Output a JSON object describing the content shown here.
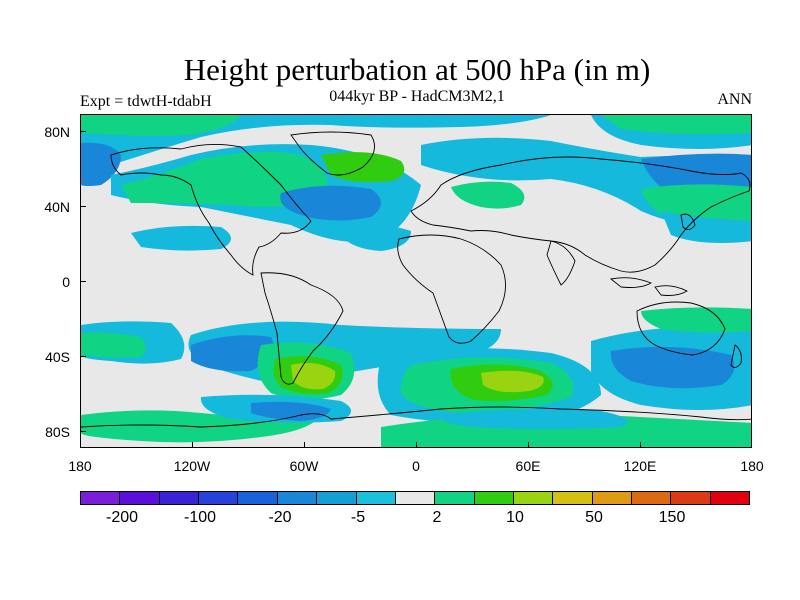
{
  "header": {
    "title": "Height perturbation at 500 hPa (in m)",
    "subtitle": "044kyr BP - HadCM3M2,1",
    "expt": "Expt = tdwtH-tdabH",
    "season": "ANN"
  },
  "axes": {
    "lat_ticks": [
      "80N",
      "40N",
      "0",
      "40S",
      "80S"
    ],
    "lon_ticks": [
      "180",
      "120W",
      "60W",
      "0",
      "60E",
      "120E",
      "180"
    ]
  },
  "colorbar": {
    "colors": [
      "#7a1ed8",
      "#5a10d8",
      "#3c22d6",
      "#2642d8",
      "#1a62d8",
      "#1a86d8",
      "#14a0d4",
      "#1ac0dc",
      "#e8e8e8",
      "#10d484",
      "#30cc10",
      "#9ad410",
      "#d4c010",
      "#de9a10",
      "#dc6a10",
      "#dc3a14",
      "#e0000e"
    ],
    "labels": [
      "-200",
      "-100",
      "-20",
      "-5",
      "2",
      "10",
      "50",
      "150"
    ]
  },
  "colors": {
    "neutral": "#e8e8e8",
    "lightblue": "#14b9dc",
    "blue": "#1a86d8",
    "lightgreen": "#10d484",
    "green": "#30cc10",
    "yellowgreen": "#9ad410"
  }
}
